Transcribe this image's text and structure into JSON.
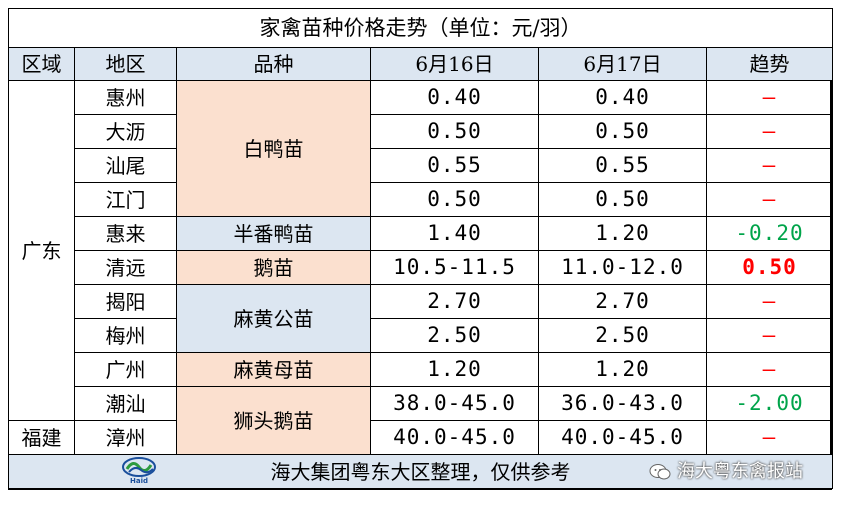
{
  "title": "家禽苗种价格走势（单位：元/羽）",
  "headers": {
    "area": "区域",
    "region": "地区",
    "variety": "品种",
    "date1": "6月16日",
    "date2": "6月17日",
    "trend": "趋势"
  },
  "areas": {
    "guangdong": "广东",
    "fujian": "福建"
  },
  "varieties": {
    "white_duck": "白鸭苗",
    "muscovy_half": "半番鸭苗",
    "goose": "鹅苗",
    "mahuang_male": "麻黄公苗",
    "mahuang_female": "麻黄母苗",
    "lion_goose": "狮头鹅苗"
  },
  "rows": [
    {
      "region": "惠州",
      "d1": "0.40",
      "d2": "0.40",
      "trend": "—",
      "trend_dir": "flat"
    },
    {
      "region": "大沥",
      "d1": "0.50",
      "d2": "0.50",
      "trend": "—",
      "trend_dir": "flat"
    },
    {
      "region": "汕尾",
      "d1": "0.55",
      "d2": "0.55",
      "trend": "—",
      "trend_dir": "flat"
    },
    {
      "region": "江门",
      "d1": "0.50",
      "d2": "0.50",
      "trend": "—",
      "trend_dir": "flat"
    },
    {
      "region": "惠来",
      "d1": "1.40",
      "d2": "1.20",
      "trend": "-0.20",
      "trend_dir": "down"
    },
    {
      "region": "清远",
      "d1": "10.5-11.5",
      "d2": "11.0-12.0",
      "trend": "0.50",
      "trend_dir": "up"
    },
    {
      "region": "揭阳",
      "d1": "2.70",
      "d2": "2.70",
      "trend": "—",
      "trend_dir": "flat"
    },
    {
      "region": "梅州",
      "d1": "2.50",
      "d2": "2.50",
      "trend": "—",
      "trend_dir": "flat"
    },
    {
      "region": "广州",
      "d1": "1.20",
      "d2": "1.20",
      "trend": "—",
      "trend_dir": "flat"
    },
    {
      "region": "潮汕",
      "d1": "38.0-45.0",
      "d2": "36.0-43.0",
      "trend": "-2.00",
      "trend_dir": "down"
    },
    {
      "region": "漳州",
      "d1": "40.0-45.0",
      "d2": "40.0-45.0",
      "trend": "—",
      "trend_dir": "flat"
    }
  ],
  "footer": {
    "text": "海大集团粤东大区整理，仅供参考",
    "logo_text": "Haid",
    "watermark": "海大粤东禽报站"
  },
  "colors": {
    "header_bg": "#dce6f1",
    "peach": "#fbe0cf",
    "flat": "#ff0000",
    "down": "#00a44a",
    "up": "#ff0000"
  }
}
